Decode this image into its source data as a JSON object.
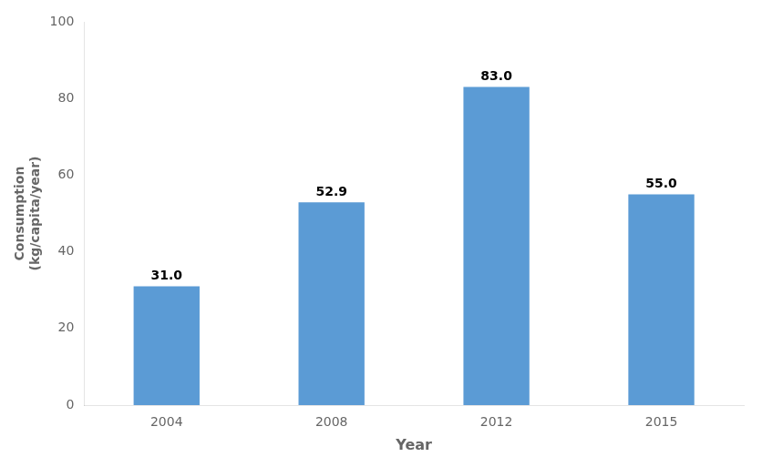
{
  "chart_data": {
    "type": "bar",
    "categories": [
      "2004",
      "2008",
      "2012",
      "2015"
    ],
    "values": [
      31.0,
      52.9,
      83.0,
      55.0
    ],
    "value_labels": [
      "31.0",
      "52.9",
      "83.0",
      "55.0"
    ],
    "color": "#5B9BD5",
    "xlabel": "Year",
    "ylabel": "Consumption\n(kg/capita/year)",
    "ylim": [
      0,
      100
    ],
    "yticks": [
      0,
      20,
      40,
      60,
      80,
      100
    ],
    "grid": false,
    "data_labels": true
  }
}
